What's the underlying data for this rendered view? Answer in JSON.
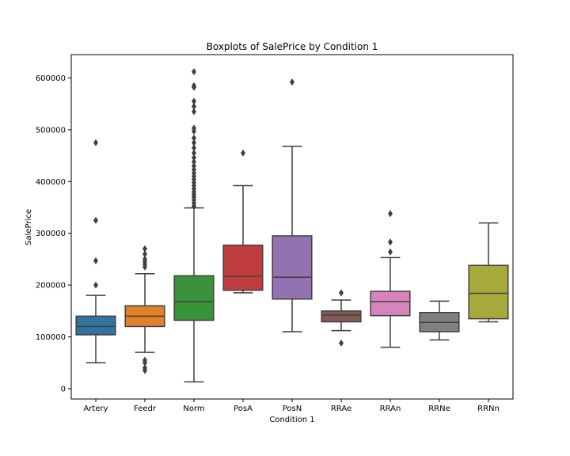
{
  "chart_data": {
    "type": "boxplot",
    "title": "Boxplots of SalePrice by Condition 1",
    "xlabel": "Condition 1",
    "ylabel": "SalePrice",
    "ylim": [
      -20000,
      645000
    ],
    "yticks": [
      0,
      100000,
      200000,
      300000,
      400000,
      500000,
      600000
    ],
    "categories": [
      "Artery",
      "Feedr",
      "Norm",
      "PosA",
      "PosN",
      "RRAe",
      "RRAn",
      "RRNe",
      "RRNn"
    ],
    "boxes": [
      {
        "label": "Artery",
        "color": "#3274a1",
        "whislo": 50000,
        "q1": 104000,
        "med": 120000,
        "q3": 140000,
        "whishi": 180000,
        "fliers": [
          200000,
          247000,
          325000,
          475000
        ]
      },
      {
        "label": "Feedr",
        "color": "#e1812c",
        "whislo": 70000,
        "q1": 120000,
        "med": 140000,
        "q3": 160000,
        "whishi": 222000,
        "fliers": [
          35000,
          40000,
          50000,
          55000,
          235000,
          240000,
          245000,
          250000,
          260000,
          270000
        ]
      },
      {
        "label": "Norm",
        "color": "#3a923a",
        "whislo": 13000,
        "q1": 132000,
        "med": 168000,
        "q3": 218000,
        "whishi": 349000,
        "fliers": [
          352000,
          358000,
          364000,
          370000,
          375000,
          380000,
          386000,
          392000,
          398000,
          404000,
          410000,
          416000,
          423000,
          430000,
          438000,
          446000,
          455000,
          465000,
          475000,
          484000,
          497000,
          503000,
          535000,
          545000,
          555000,
          582000,
          585000,
          612000
        ]
      },
      {
        "label": "PosA",
        "color": "#c03d3e",
        "whislo": 185000,
        "q1": 190000,
        "med": 217000,
        "q3": 277000,
        "whishi": 392000,
        "fliers": [
          455000
        ]
      },
      {
        "label": "PosN",
        "color": "#9372b2",
        "whislo": 110000,
        "q1": 173000,
        "med": 215000,
        "q3": 295000,
        "whishi": 468000,
        "fliers": [
          592000
        ]
      },
      {
        "label": "RRAe",
        "color": "#845b53",
        "whislo": 112000,
        "q1": 129000,
        "med": 142000,
        "q3": 150000,
        "whishi": 171000,
        "fliers": [
          88000,
          185000
        ]
      },
      {
        "label": "RRAn",
        "color": "#d684bd",
        "whislo": 80000,
        "q1": 141000,
        "med": 168000,
        "q3": 188000,
        "whishi": 253000,
        "fliers": [
          264000,
          283000,
          338000
        ]
      },
      {
        "label": "RRNe",
        "color": "#7f7f7f",
        "whislo": 94000,
        "q1": 110000,
        "med": 128000,
        "q3": 147000,
        "whishi": 169000,
        "fliers": []
      },
      {
        "label": "RRNn",
        "color": "#a9a83b",
        "whislo": 129000,
        "q1": 135000,
        "med": 184000,
        "q3": 238000,
        "whishi": 320000,
        "fliers": []
      }
    ]
  }
}
